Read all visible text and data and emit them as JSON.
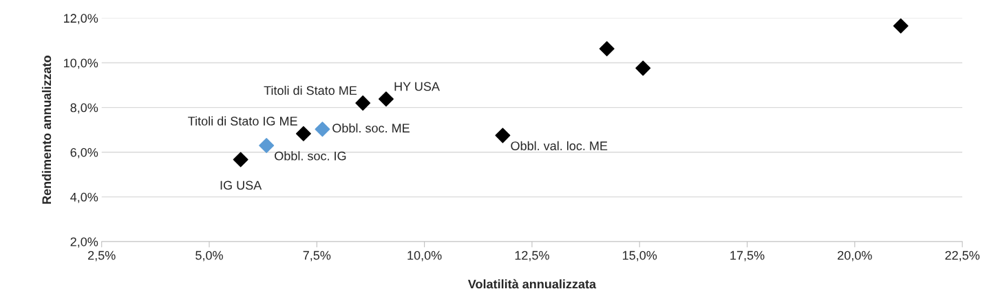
{
  "chart_data": {
    "type": "scatter",
    "xlabel": "Volatilità annualizzata",
    "ylabel": "Rendimento annualizzato",
    "marker": "diamond",
    "grid": "y",
    "legend": false,
    "xlim": [
      2.5,
      22.5
    ],
    "ylim": [
      2,
      12
    ],
    "xticks": [
      {
        "value": 2.5,
        "label": "2,5%"
      },
      {
        "value": 5,
        "label": "5,0%"
      },
      {
        "value": 7.5,
        "label": "7,5%"
      },
      {
        "value": 10,
        "label": "10,0%"
      },
      {
        "value": 12.5,
        "label": "12,5%"
      },
      {
        "value": 15,
        "label": "15,0%"
      },
      {
        "value": 17.5,
        "label": "17,5%"
      },
      {
        "value": 20,
        "label": "20,0%"
      },
      {
        "value": 22.5,
        "label": "22,5%"
      }
    ],
    "yticks": [
      {
        "value": 2,
        "label": "2,0%"
      },
      {
        "value": 4,
        "label": "4,0%"
      },
      {
        "value": 6,
        "label": "6,0%"
      },
      {
        "value": 8,
        "label": "8,0%"
      },
      {
        "value": 10,
        "label": "10,0%"
      },
      {
        "value": 12,
        "label": "12,0%"
      }
    ],
    "series": [
      {
        "color": "#000000",
        "x": [
          5.73,
          7.19,
          8.57,
          9.11,
          11.82,
          14.24,
          15.08,
          21.07
        ],
        "values": [
          5.67,
          6.83,
          8.2,
          8.38,
          6.75,
          10.63,
          9.76,
          11.65
        ]
      },
      {
        "color": "#5b9bd5",
        "x": [
          6.33,
          7.63
        ],
        "values": [
          6.3,
          7.03
        ]
      }
    ],
    "annotations": [
      {
        "text": "IG USA",
        "x": 5.73,
        "y": 5.67
      },
      {
        "text": "Titoli di Stato IG ME",
        "x": 7.19,
        "y": 6.83
      },
      {
        "text": "Titoli di Stato ME",
        "x": 8.57,
        "y": 8.2
      },
      {
        "text": "HY USA",
        "x": 9.11,
        "y": 8.38
      },
      {
        "text": "Obbl. val. loc. ME",
        "x": 11.82,
        "y": 6.75
      },
      {
        "text": "Obbl. soc. IG",
        "x": 6.33,
        "y": 6.3
      },
      {
        "text": "Obbl. soc. ME",
        "x": 7.63,
        "y": 7.03
      }
    ]
  }
}
